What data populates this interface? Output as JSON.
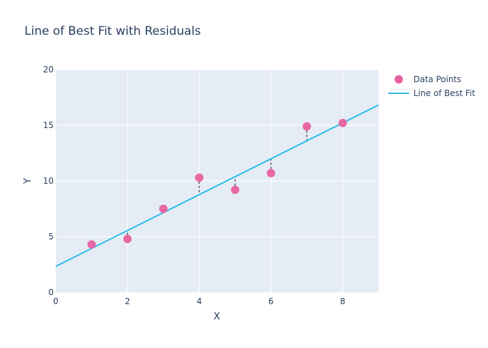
{
  "chart_data": {
    "type": "scatter",
    "title": "Line of Best Fit with Residuals",
    "xlabel": "X",
    "ylabel": "Y",
    "xlim": [
      0,
      9
    ],
    "ylim": [
      0,
      20
    ],
    "x_ticks": [
      0,
      2,
      4,
      6,
      8
    ],
    "y_ticks": [
      0,
      5,
      10,
      15,
      20
    ],
    "grid": true,
    "legend_position": "top-right",
    "series": [
      {
        "name": "Data Points",
        "kind": "markers",
        "color": "#e8609f",
        "x": [
          1,
          2,
          3,
          4,
          5,
          6,
          7,
          8
        ],
        "y": [
          4.3,
          4.8,
          7.5,
          10.3,
          9.2,
          10.7,
          14.9,
          15.2
        ]
      },
      {
        "name": "Line of Best Fit",
        "kind": "line",
        "color": "#2bbbe8",
        "slope": 1.61,
        "intercept": 2.33
      }
    ],
    "residuals": {
      "color": "#000000"
    }
  }
}
